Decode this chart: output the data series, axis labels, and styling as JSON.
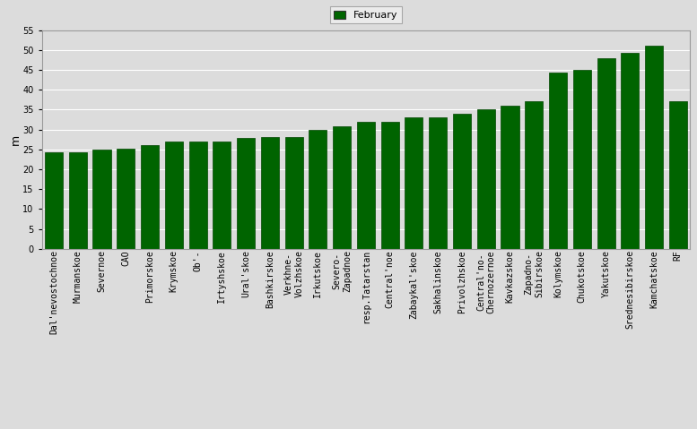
{
  "categories": [
    "Dal'nevostochnoe",
    "Murmanskoe",
    "Severnoe",
    "CAO",
    "Primorskoe",
    "Krymskoe",
    "Ob'-",
    "Irtyshskoe",
    "Ural'skoe",
    "Bashkirskoe",
    "Verkhne-\nVolzhskoe",
    "Irkutskoe",
    "Severo-\nZapadnoe",
    "resp.Tatarstan",
    "Central'noe",
    "Zabaykal'skoe",
    "Sakhalinskoe",
    "Privolzhskoe",
    "Central'no-\nChernozernoe",
    "Kavkazskoe",
    "Zapadno-\nSibirskoe",
    "Kolymskoe",
    "Chukotskoe",
    "Yakutskoe",
    "Srednesibirskoe",
    "Kamchatskoe",
    "RF"
  ],
  "values": [
    24.3,
    24.3,
    25.0,
    25.1,
    26.0,
    27.0,
    27.0,
    27.0,
    27.8,
    28.0,
    28.0,
    30.0,
    30.8,
    32.0,
    32.0,
    33.0,
    33.0,
    34.0,
    35.0,
    36.0,
    37.0,
    44.3,
    45.0,
    48.0,
    49.3,
    51.0,
    37.0
  ],
  "bar_color": "#006400",
  "bar_edge_color": "#004500",
  "background_color": "#dcdcdc",
  "plot_bg_color": "#dcdcdc",
  "ylabel": "m",
  "ylim": [
    0,
    55
  ],
  "yticks": [
    0,
    5,
    10,
    15,
    20,
    25,
    30,
    35,
    40,
    45,
    50,
    55
  ],
  "legend_label": "February",
  "legend_color": "#006400",
  "tick_fontsize": 7,
  "ylabel_fontsize": 9,
  "grid_color": "#ffffff",
  "legend_fontsize": 8
}
